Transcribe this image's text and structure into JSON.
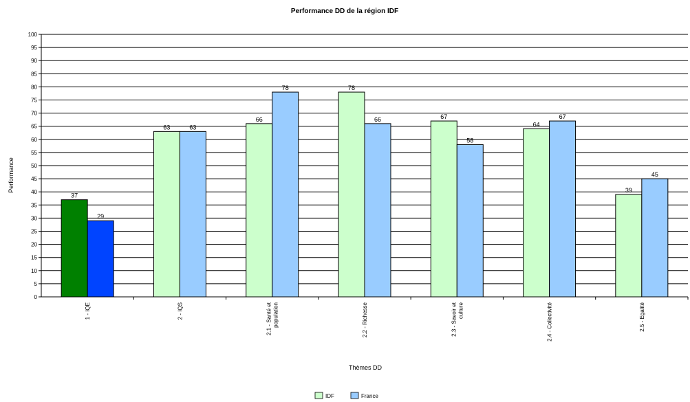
{
  "chart_data": {
    "type": "bar",
    "title": "Performance DD de la région IDF",
    "xlabel": "Thèmes DD",
    "ylabel": "Performance",
    "ylim": [
      0,
      100
    ],
    "ytick_step": 5,
    "grid": true,
    "legend_position": "bottom",
    "categories": [
      "1 - IQE",
      "2 - IQS",
      "2.1 - Santé et population",
      "2.2 - Richesse",
      "2.3 - Savoir et culture",
      "2.4 - Collectivité",
      "2.5 - Egalité"
    ],
    "series": [
      {
        "name": "IDF",
        "values": [
          37,
          63,
          66,
          78,
          67,
          64,
          39
        ],
        "color": "#ccffcc",
        "highlight": {
          "index": 0,
          "color": "#008000"
        }
      },
      {
        "name": "France",
        "values": [
          29,
          63,
          78,
          66,
          58,
          67,
          45
        ],
        "color": "#99ccff",
        "highlight": {
          "index": 0,
          "color": "#0044ff"
        }
      }
    ]
  }
}
